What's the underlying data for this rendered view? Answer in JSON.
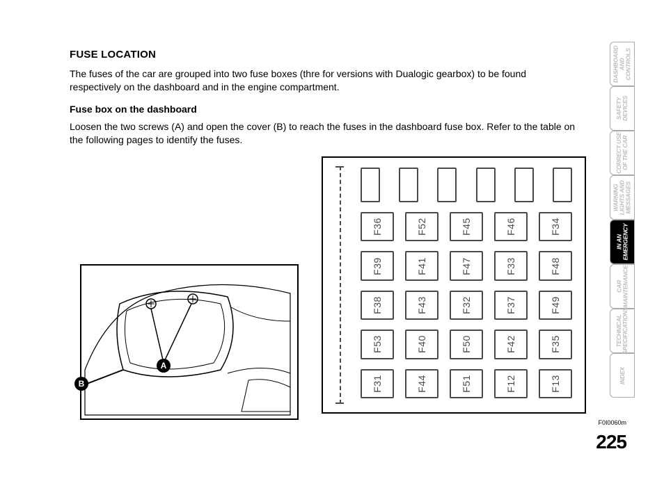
{
  "headings": {
    "title": "FUSE LOCATION",
    "sub": "Fuse box on the dashboard"
  },
  "paragraphs": {
    "p1": "The fuses of the car are grouped into two fuse boxes (thre for versions with Dualogic gearbox) to be found respectively on the dashboard and in the engine compartment.",
    "p2": "Loosen the two screws (A) and open the cover (B) to reach the fuses in the dashboard fuse box. Refer to the table on the following pages to identify the fuses."
  },
  "diagram": {
    "callouts": {
      "a": "A",
      "b": "B"
    },
    "relay_count": 6,
    "fuse_labels": [
      [
        "F36",
        "F52",
        "F45",
        "F46",
        "F34"
      ],
      [
        "F39",
        "F41",
        "F47",
        "F33",
        "F48"
      ],
      [
        "F38",
        "F43",
        "F32",
        "F37",
        "F49"
      ],
      [
        "F53",
        "F40",
        "F50",
        "F42",
        "F35"
      ],
      [
        "F31",
        "F44",
        "F51",
        "F12",
        "F13"
      ]
    ],
    "figure_code": "F0I0060m",
    "border_color": "#494949"
  },
  "page_number": "225",
  "tabs": [
    {
      "label": "DASHBOARD\nAND\nCONTROLS",
      "active": false
    },
    {
      "label": "SAFETY\nDEVICES",
      "active": false
    },
    {
      "label": "CORRECT USE\nOF THE CAR",
      "active": false
    },
    {
      "label": "WARNING\nLIGHTS AND\nMESSAGES",
      "active": false
    },
    {
      "label": "IN AN\nEMERGENCY",
      "active": true
    },
    {
      "label": "CAR\nMAINTENANCE",
      "active": false
    },
    {
      "label": "TECHNICAL\nSPECIFICATIONS",
      "active": false
    },
    {
      "label": "INDEX",
      "active": false
    }
  ]
}
